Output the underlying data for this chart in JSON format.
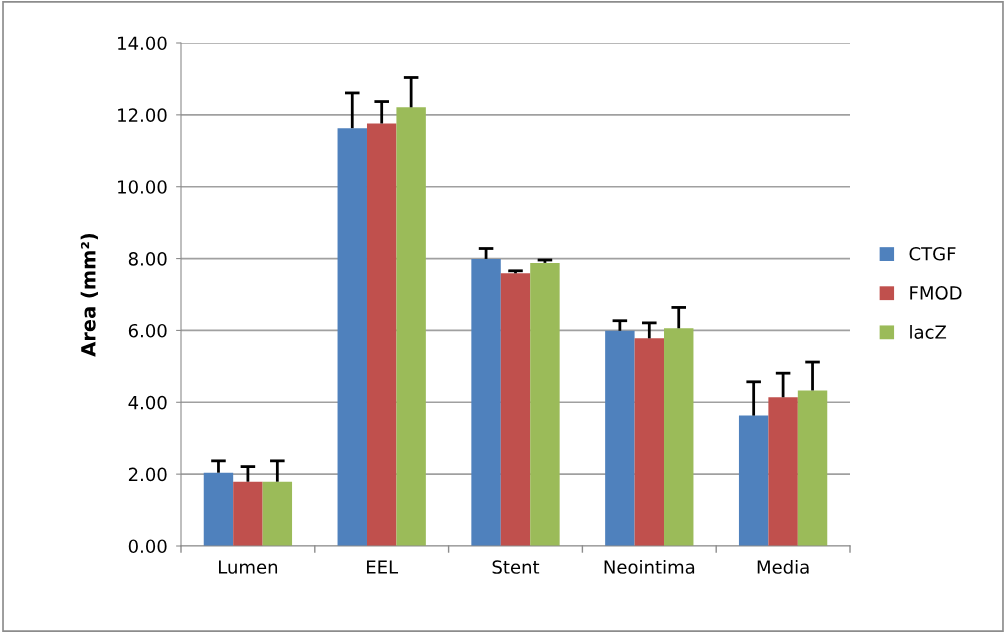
{
  "chart_data": {
    "type": "bar",
    "ylabel": "Area (mm²)",
    "categories": [
      "Lumen",
      "EEL",
      "Stent",
      "Neointima",
      "Media"
    ],
    "series": [
      {
        "name": "CTGF",
        "color": "#4f81bd",
        "values": [
          2.04,
          11.63,
          7.99,
          5.99,
          3.63
        ],
        "errors": [
          [
            2.04,
            2.37
          ],
          [
            11.63,
            12.61
          ],
          [
            7.99,
            8.28
          ],
          [
            5.99,
            6.27
          ],
          [
            3.63,
            4.57
          ]
        ]
      },
      {
        "name": "FMOD",
        "color": "#c0504d",
        "values": [
          1.79,
          11.76,
          7.59,
          5.78,
          4.14
        ],
        "errors": [
          [
            1.79,
            2.21
          ],
          [
            11.76,
            12.37
          ],
          [
            7.59,
            7.66
          ],
          [
            5.78,
            6.21
          ],
          [
            4.14,
            4.81
          ]
        ]
      },
      {
        "name": "lacZ",
        "color": "#9bbb59",
        "values": [
          1.79,
          12.21,
          7.88,
          6.06,
          4.33
        ],
        "errors": [
          [
            1.79,
            2.37
          ],
          [
            12.21,
            13.04
          ],
          [
            7.88,
            7.96
          ],
          [
            6.06,
            6.64
          ],
          [
            4.33,
            5.12
          ]
        ]
      }
    ],
    "ylim": [
      0,
      14
    ],
    "yticks": [
      {
        "value": 0,
        "label": "0.00"
      },
      {
        "value": 2,
        "label": "2.00"
      },
      {
        "value": 4,
        "label": "4.00"
      },
      {
        "value": 6,
        "label": "6.00"
      },
      {
        "value": 8,
        "label": "8.00"
      },
      {
        "value": 10,
        "label": "10.00"
      },
      {
        "value": 12,
        "label": "12.00"
      },
      {
        "value": 14,
        "label": "14.00"
      }
    ],
    "grid": "y",
    "legend": "right"
  }
}
